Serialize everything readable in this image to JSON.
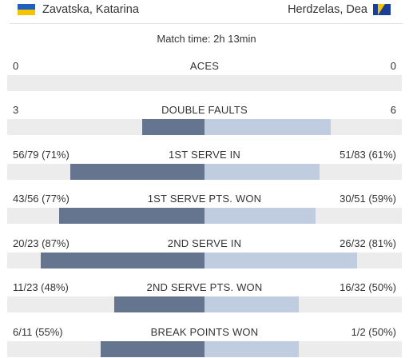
{
  "players": {
    "left": {
      "name": "Zavatska, Katarina",
      "flag": "ukraine-flag"
    },
    "right": {
      "name": "Herdzelas, Dea",
      "flag": "bosnia-flag"
    }
  },
  "match_time": "Match time: 2h 13min",
  "colors": {
    "left_bar": "#65758f",
    "right_bar": "#c0cde1",
    "track": "#ececec"
  },
  "stats": [
    {
      "label": "ACES",
      "left": "0",
      "right": "0",
      "left_fraction": 0,
      "right_fraction": 0
    },
    {
      "label": "DOUBLE FAULTS",
      "left": "3",
      "right": "6",
      "left_fraction": 0.33,
      "right_fraction": 0.67
    },
    {
      "label": "1ST SERVE IN",
      "left": "56/79 (71%)",
      "right": "51/83 (61%)",
      "left_fraction": 0.71,
      "right_fraction": 0.61
    },
    {
      "label": "1ST SERVE PTS. WON",
      "left": "43/56 (77%)",
      "right": "30/51 (59%)",
      "left_fraction": 0.77,
      "right_fraction": 0.59
    },
    {
      "label": "2ND SERVE IN",
      "left": "20/23 (87%)",
      "right": "26/32 (81%)",
      "left_fraction": 0.87,
      "right_fraction": 0.81
    },
    {
      "label": "2ND SERVE PTS. WON",
      "left": "11/23 (48%)",
      "right": "16/32 (50%)",
      "left_fraction": 0.48,
      "right_fraction": 0.5
    },
    {
      "label": "BREAK POINTS WON",
      "left": "6/11 (55%)",
      "right": "1/2 (50%)",
      "left_fraction": 0.55,
      "right_fraction": 0.5
    }
  ]
}
